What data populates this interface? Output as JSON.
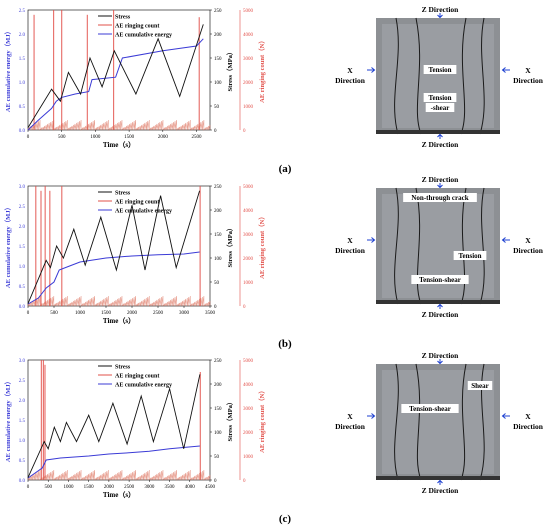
{
  "captions": [
    "(a)",
    "(b)",
    "(c)"
  ],
  "photo_labels": {
    "z_top": "Z Direction",
    "z_bottom": "Z Direction",
    "x_word": "X",
    "x_dir": "Direction"
  },
  "photos": [
    {
      "labels": [
        "Tension",
        "Tension",
        "-shear"
      ]
    },
    {
      "labels": [
        "Non-through crack",
        "Tension",
        "Tension-shear"
      ]
    },
    {
      "labels": [
        "Shear",
        "Tension-shear"
      ]
    }
  ],
  "chart_data": [
    {
      "type": "line",
      "xlabel": "Time（s）",
      "ylabel_left": "AE cumulative energy（MJ）",
      "ylabel_right1": "Stress（MPa）",
      "ylabel_right2": "AE ringing count（N）",
      "legend": [
        "Stress",
        "AE ringing count",
        "AE cumulative energy"
      ],
      "xlim": [
        0,
        2700
      ],
      "xticks": [
        "0",
        "500",
        "1000",
        "1500",
        "2000",
        "2500"
      ],
      "xtick_values": [
        0,
        500,
        1000,
        1500,
        2000,
        2500
      ],
      "ylim_left": [
        0,
        2.5
      ],
      "yticks_left": [
        "0.0",
        "0.5",
        "1.0",
        "1.5",
        "2.0",
        "2.5"
      ],
      "ylim_stress": [
        0,
        250
      ],
      "yticks_stress": [
        "0",
        "50",
        "100",
        "150",
        "200",
        "250"
      ],
      "ylim_count": [
        0,
        5000
      ],
      "yticks_count": [
        "0",
        "1000",
        "2000",
        "3000",
        "4000",
        "5000"
      ],
      "stress": {
        "x": [
          0,
          350,
          480,
          600,
          780,
          920,
          1100,
          1280,
          1600,
          1930,
          2250,
          2600
        ],
        "y": [
          5,
          85,
          60,
          120,
          75,
          150,
          90,
          165,
          75,
          190,
          70,
          220
        ]
      },
      "energy": {
        "x": [
          0,
          150,
          350,
          420,
          500,
          700,
          900,
          950,
          1300,
          1400,
          2000,
          2500,
          2600
        ],
        "y": [
          0.0,
          0.2,
          0.45,
          0.6,
          0.68,
          0.75,
          0.8,
          1.05,
          1.1,
          1.5,
          1.65,
          1.75,
          1.9
        ]
      },
      "ringing": {
        "x": [
          90,
          380,
          500,
          880,
          1270,
          2540
        ],
        "y": [
          4800,
          5000,
          5000,
          4800,
          5000,
          4700
        ]
      }
    },
    {
      "type": "line",
      "xlabel": "Time（s）",
      "ylabel_left": "AE cumulative energy（MJ）",
      "ylabel_right1": "Stress（MPa）",
      "ylabel_right2": "AE ringing count（N）",
      "legend": [
        "Stress",
        "AE ringing count",
        "AE cumulative energy"
      ],
      "xlim": [
        0,
        3500
      ],
      "xticks": [
        "0",
        "500",
        "1000",
        "1500",
        "2000",
        "2500",
        "3000",
        "3500"
      ],
      "xtick_values": [
        0,
        500,
        1000,
        1500,
        2000,
        2500,
        3000,
        3500
      ],
      "ylim_left": [
        0,
        3.0
      ],
      "yticks_left": [
        "0.0",
        "0.5",
        "1.0",
        "1.5",
        "2.0",
        "2.5",
        "3.0"
      ],
      "ylim_stress": [
        0,
        250
      ],
      "yticks_stress": [
        "0",
        "50",
        "100",
        "150",
        "200",
        "250"
      ],
      "ylim_count": [
        0,
        5000
      ],
      "yticks_count": [
        "0",
        "1000",
        "2000",
        "3000",
        "4000",
        "5000"
      ],
      "stress": {
        "x": [
          0,
          350,
          430,
          550,
          680,
          880,
          1100,
          1400,
          1700,
          2000,
          2250,
          2550,
          2850,
          3300
        ],
        "y": [
          5,
          95,
          80,
          125,
          100,
          160,
          85,
          185,
          75,
          210,
          75,
          230,
          80,
          240
        ]
      },
      "energy": {
        "x": [
          0,
          200,
          350,
          500,
          600,
          800,
          1000,
          1500,
          2000,
          2500,
          3000,
          3300
        ],
        "y": [
          0.05,
          0.2,
          0.45,
          0.6,
          0.9,
          1.0,
          1.1,
          1.2,
          1.25,
          1.28,
          1.3,
          1.35
        ]
      },
      "ringing": {
        "x": [
          150,
          250,
          330,
          420,
          650,
          3310
        ],
        "y": [
          5000,
          4800,
          5000,
          4800,
          5000,
          5000
        ]
      }
    },
    {
      "type": "line",
      "xlabel": "Time（s）",
      "ylabel_left": "AE cumulative energy（MJ）",
      "ylabel_right1": "Stress（MPa）",
      "ylabel_right2": "AE ringing count（N）",
      "legend": [
        "Stress",
        "AE ringing count",
        "AE cumulative energy"
      ],
      "xlim": [
        0,
        4500
      ],
      "xticks": [
        "0",
        "500",
        "1000",
        "1500",
        "2000",
        "2500",
        "3000",
        "3500",
        "4000",
        "4500"
      ],
      "xtick_values": [
        0,
        500,
        1000,
        1500,
        2000,
        2500,
        3000,
        3500,
        4000,
        4500
      ],
      "ylim_left": [
        0,
        3.0
      ],
      "yticks_left": [
        "0.0",
        "0.5",
        "1.0",
        "1.5",
        "2.0",
        "2.5",
        "3.0"
      ],
      "ylim_stress": [
        0,
        250
      ],
      "yticks_stress": [
        "0",
        "50",
        "100",
        "150",
        "200",
        "250"
      ],
      "ylim_count": [
        0,
        5000
      ],
      "yticks_count": [
        "0",
        "1000",
        "2000",
        "3000",
        "4000",
        "5000"
      ],
      "stress": {
        "x": [
          0,
          400,
          500,
          650,
          800,
          950,
          1200,
          1500,
          1750,
          2100,
          2450,
          2800,
          3100,
          3500,
          3850,
          4250
        ],
        "y": [
          5,
          80,
          65,
          110,
          80,
          120,
          80,
          135,
          80,
          160,
          75,
          175,
          80,
          190,
          65,
          220
        ]
      },
      "energy": {
        "x": [
          0,
          350,
          450,
          800,
          1500,
          2000,
          2500,
          3000,
          3500,
          4250
        ],
        "y": [
          0.05,
          0.3,
          0.5,
          0.55,
          0.6,
          0.65,
          0.68,
          0.72,
          0.78,
          0.85
        ]
      },
      "ringing": {
        "x": [
          330,
          380,
          420,
          4260
        ],
        "y": [
          5000,
          5000,
          4800,
          4500
        ]
      }
    }
  ]
}
